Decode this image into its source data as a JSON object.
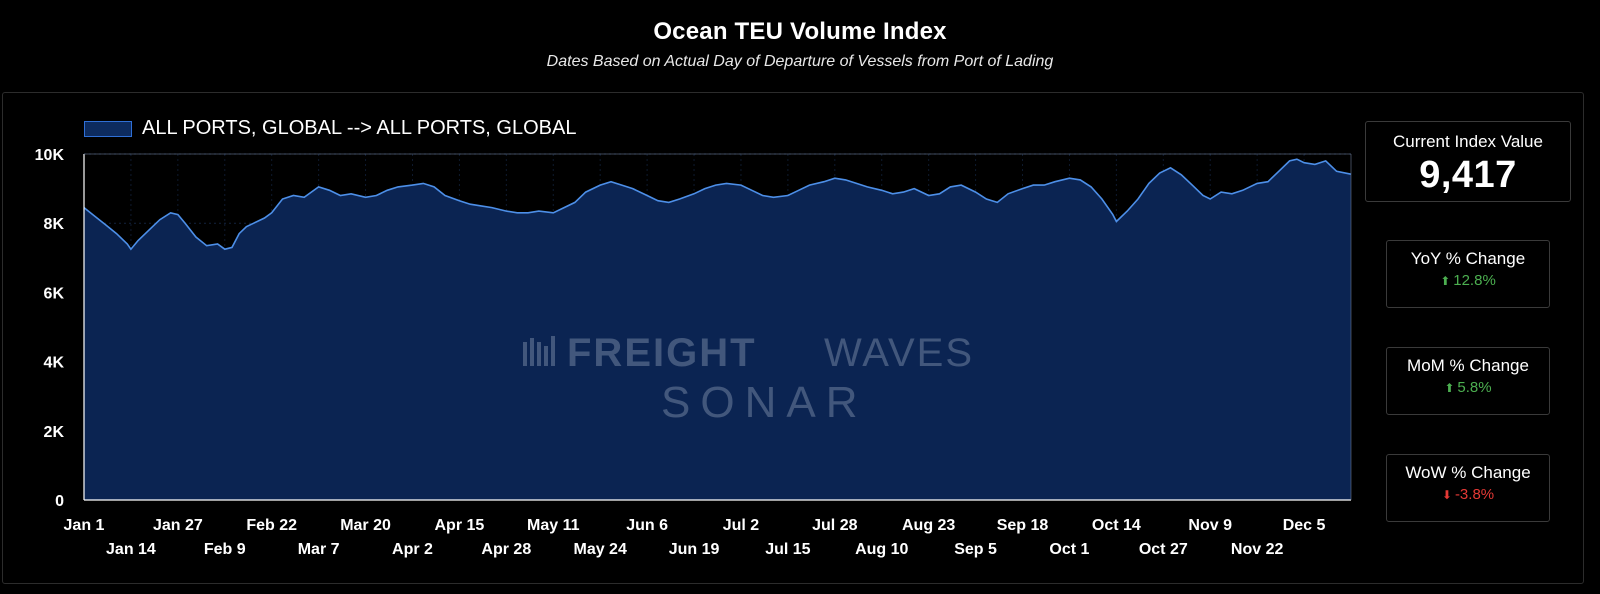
{
  "title": "Ocean TEU Volume Index",
  "subtitle": "Dates Based on Actual Day of Departure of Vessels from Port of Lading",
  "watermark": {
    "line1a": "FREIGHT",
    "line1b": "WAVES",
    "line2": "SONAR"
  },
  "legend": {
    "label": "ALL PORTS, GLOBAL --> ALL PORTS, GLOBAL"
  },
  "kpis": {
    "current": {
      "title": "Current Index Value",
      "value": "9,417"
    },
    "yoy": {
      "title": "YoY % Change",
      "arrow": "⬆",
      "value": "12.8%",
      "color": "#4caf50"
    },
    "mom": {
      "title": "MoM % Change",
      "arrow": "⬆",
      "value": "5.8%",
      "color": "#4caf50"
    },
    "wow": {
      "title": "WoW % Change",
      "arrow": "⬇",
      "value": "-3.8%",
      "color": "#e53935"
    }
  },
  "colors": {
    "area_fill": "#0b2452",
    "line": "#4d8fe8",
    "grid": "#1f3a66",
    "axis_text": "#ffffff"
  },
  "chart_data": {
    "type": "area",
    "title": "Ocean TEU Volume Index",
    "ylim": [
      0,
      10000
    ],
    "y_ticks": [
      0,
      2000,
      4000,
      6000,
      8000,
      10000
    ],
    "y_tick_labels": [
      "0",
      "2K",
      "4K",
      "6K",
      "8K",
      "10K"
    ],
    "x_tick_labels": [
      "Jan 1",
      "Jan 14",
      "Jan 27",
      "Feb 9",
      "Feb 22",
      "Mar 7",
      "Mar 20",
      "Apr 2",
      "Apr 15",
      "Apr 28",
      "May 11",
      "May 24",
      "Jun 6",
      "Jun 19",
      "Jul 2",
      "Jul 15",
      "Jul 28",
      "Aug 10",
      "Aug 23",
      "Sep 5",
      "Sep 18",
      "Oct 1",
      "Oct 14",
      "Oct 27",
      "Nov 9",
      "Nov 22",
      "Dec 5"
    ],
    "x_tick_days": [
      0,
      13,
      26,
      39,
      52,
      65,
      78,
      91,
      104,
      117,
      130,
      143,
      156,
      169,
      182,
      195,
      208,
      221,
      234,
      247,
      260,
      273,
      286,
      299,
      312,
      325,
      338
    ],
    "x_range_days": [
      0,
      351
    ],
    "grid": true,
    "legend_position": "top-left",
    "series": [
      {
        "name": "ALL PORTS, GLOBAL --> ALL PORTS, GLOBAL",
        "x_days": [
          0,
          3,
          6,
          9,
          12,
          13,
          15,
          18,
          21,
          24,
          26,
          28,
          31,
          34,
          37,
          39,
          41,
          43,
          45,
          47,
          50,
          52,
          55,
          58,
          61,
          65,
          68,
          71,
          74,
          78,
          81,
          84,
          87,
          91,
          94,
          97,
          100,
          104,
          107,
          110,
          113,
          117,
          120,
          123,
          126,
          130,
          133,
          136,
          139,
          143,
          146,
          149,
          152,
          156,
          159,
          162,
          165,
          169,
          172,
          175,
          178,
          182,
          185,
          188,
          191,
          195,
          198,
          201,
          205,
          208,
          211,
          214,
          217,
          221,
          224,
          227,
          230,
          234,
          237,
          240,
          243,
          247,
          250,
          253,
          256,
          260,
          263,
          266,
          269,
          273,
          276,
          279,
          282,
          285,
          286,
          289,
          292,
          295,
          298,
          301,
          304,
          307,
          310,
          312,
          315,
          318,
          321,
          325,
          328,
          331,
          334,
          336,
          338,
          341,
          344,
          347,
          351
        ],
        "values": [
          8450,
          8200,
          7950,
          7700,
          7400,
          7250,
          7500,
          7800,
          8100,
          8300,
          8250,
          8000,
          7600,
          7350,
          7400,
          7250,
          7300,
          7700,
          7900,
          8000,
          8150,
          8300,
          8700,
          8800,
          8750,
          9050,
          8950,
          8800,
          8850,
          8750,
          8800,
          8950,
          9050,
          9100,
          9150,
          9050,
          8800,
          8650,
          8550,
          8500,
          8450,
          8350,
          8300,
          8300,
          8350,
          8300,
          8450,
          8600,
          8900,
          9100,
          9200,
          9100,
          9000,
          8800,
          8650,
          8600,
          8700,
          8850,
          9000,
          9100,
          9150,
          9100,
          8950,
          8800,
          8750,
          8800,
          8950,
          9100,
          9200,
          9300,
          9250,
          9150,
          9050,
          8950,
          8850,
          8900,
          9000,
          8800,
          8850,
          9050,
          9100,
          8900,
          8700,
          8600,
          8850,
          9000,
          9100,
          9100,
          9200,
          9300,
          9250,
          9050,
          8700,
          8250,
          8050,
          8350,
          8700,
          9150,
          9450,
          9600,
          9400,
          9100,
          8800,
          8700,
          8900,
          8850,
          8950,
          9150,
          9200,
          9500,
          9800,
          9850,
          9750,
          9700,
          9800,
          9500,
          9417
        ]
      }
    ]
  }
}
